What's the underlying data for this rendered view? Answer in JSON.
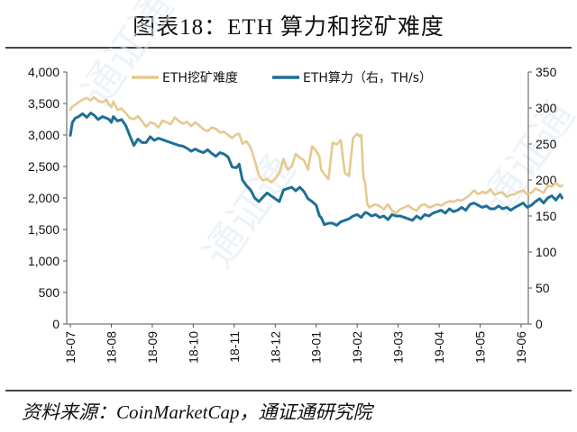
{
  "title": "图表18：ETH 算力和挖矿难度",
  "source": "资料来源：CoinMarketCap，通证通研究院",
  "chart_data": {
    "type": "line",
    "x_ticks": [
      "18-07",
      "18-08",
      "18-09",
      "18-10",
      "18-11",
      "18-12",
      "19-01",
      "19-02",
      "19-03",
      "19-04",
      "19-05",
      "19-06"
    ],
    "y_left": {
      "ticks": [
        "0",
        "500",
        "1,000",
        "1,500",
        "2,000",
        "2,500",
        "3,000",
        "3,500",
        "4,000"
      ],
      "lim": [
        0,
        4000
      ]
    },
    "y_right": {
      "ticks": [
        "0",
        "50",
        "100",
        "150",
        "200",
        "250",
        "300",
        "350"
      ],
      "lim": [
        0,
        350
      ]
    },
    "series": [
      {
        "name": "ETH挖矿难度",
        "axis": "left",
        "color": "#e6c98e",
        "x": [
          0,
          0.05,
          0.12,
          0.2,
          0.3,
          0.4,
          0.5,
          0.58,
          0.68,
          0.78,
          0.88,
          0.95,
          1.0,
          1.05,
          1.15,
          1.25,
          1.35,
          1.45,
          1.55,
          1.65,
          1.75,
          1.85,
          1.95,
          2.05,
          2.15,
          2.25,
          2.35,
          2.45,
          2.55,
          2.65,
          2.75,
          2.85,
          2.95,
          3.05,
          3.15,
          3.25,
          3.35,
          3.45,
          3.55,
          3.65,
          3.75,
          3.85,
          3.95,
          4.05,
          4.12,
          4.2,
          4.3,
          4.4,
          4.5,
          4.6,
          4.7,
          4.8,
          4.9,
          5.0,
          5.1,
          5.2,
          5.3,
          5.4,
          5.5,
          5.6,
          5.7,
          5.8,
          5.9,
          6.0,
          6.08,
          6.12,
          6.2,
          6.3,
          6.4,
          6.5,
          6.6,
          6.7,
          6.8,
          6.9,
          7.0,
          7.05,
          7.1,
          7.15,
          7.2,
          7.25,
          7.3,
          7.35,
          7.45,
          7.55,
          7.65,
          7.75,
          7.85,
          7.95,
          8.05,
          8.15,
          8.25,
          8.35,
          8.45,
          8.55,
          8.65,
          8.75,
          8.85,
          8.95,
          9.05,
          9.15,
          9.25,
          9.35,
          9.45,
          9.55,
          9.65,
          9.75,
          9.85,
          9.95,
          10.05,
          10.15,
          10.25,
          10.35,
          10.45,
          10.55,
          10.65,
          10.75,
          10.85,
          10.95,
          11.05,
          11.15,
          11.25,
          11.35,
          11.45,
          11.55,
          11.65,
          11.75,
          11.85,
          11.95,
          12.0
        ],
        "values": [
          3400,
          3450,
          3480,
          3520,
          3560,
          3590,
          3550,
          3600,
          3540,
          3520,
          3560,
          3480,
          3440,
          3530,
          3400,
          3420,
          3350,
          3270,
          3250,
          3300,
          3220,
          3130,
          3200,
          3180,
          3120,
          3230,
          3200,
          3170,
          3280,
          3220,
          3180,
          3210,
          3140,
          3200,
          3150,
          3090,
          3060,
          3120,
          3100,
          3040,
          3050,
          3000,
          2950,
          3010,
          3020,
          2860,
          2900,
          2800,
          2600,
          2360,
          2280,
          2300,
          2250,
          2310,
          2400,
          2620,
          2450,
          2500,
          2700,
          2640,
          2600,
          2450,
          2820,
          2750,
          2650,
          2450,
          2380,
          2300,
          2880,
          2850,
          2920,
          2400,
          2350,
          2950,
          3020,
          2980,
          3000,
          2350,
          2200,
          1900,
          1850,
          1870,
          1900,
          1870,
          1820,
          1900,
          1800,
          1760,
          1820,
          1850,
          1880,
          1830,
          1800,
          1880,
          1900,
          1850,
          1870,
          1900,
          1880,
          1920,
          1950,
          1940,
          1970,
          1960,
          2000,
          2050,
          2120,
          2060,
          2100,
          2080,
          2140,
          2050,
          2080,
          2090,
          2020,
          2050,
          2060,
          2100,
          2120,
          2060,
          2080,
          2150,
          2120,
          2080,
          2200,
          2180,
          2240,
          2180,
          2200
        ]
      },
      {
        "name": "ETH算力（右，TH/s）",
        "axis": "right",
        "color": "#1f6f95",
        "x": [
          0,
          0.05,
          0.12,
          0.2,
          0.3,
          0.4,
          0.5,
          0.58,
          0.68,
          0.78,
          0.88,
          0.95,
          1.0,
          1.05,
          1.15,
          1.25,
          1.35,
          1.45,
          1.55,
          1.65,
          1.75,
          1.85,
          1.95,
          2.05,
          2.15,
          2.25,
          2.35,
          2.45,
          2.55,
          2.65,
          2.75,
          2.85,
          2.95,
          3.05,
          3.15,
          3.25,
          3.35,
          3.45,
          3.55,
          3.65,
          3.75,
          3.85,
          3.95,
          4.05,
          4.12,
          4.2,
          4.3,
          4.4,
          4.5,
          4.6,
          4.7,
          4.8,
          4.9,
          5.0,
          5.1,
          5.2,
          5.3,
          5.4,
          5.5,
          5.6,
          5.7,
          5.8,
          5.9,
          6.0,
          6.08,
          6.12,
          6.2,
          6.3,
          6.4,
          6.5,
          6.6,
          6.7,
          6.8,
          6.9,
          7.0,
          7.05,
          7.1,
          7.15,
          7.2,
          7.25,
          7.3,
          7.35,
          7.45,
          7.55,
          7.65,
          7.75,
          7.85,
          7.95,
          8.05,
          8.15,
          8.25,
          8.35,
          8.45,
          8.55,
          8.65,
          8.75,
          8.85,
          8.95,
          9.05,
          9.15,
          9.25,
          9.35,
          9.45,
          9.55,
          9.65,
          9.75,
          9.85,
          9.95,
          10.05,
          10.15,
          10.25,
          10.35,
          10.45,
          10.55,
          10.65,
          10.75,
          10.85,
          10.95,
          11.05,
          11.15,
          11.25,
          11.35,
          11.45,
          11.55,
          11.65,
          11.75,
          11.85,
          11.95,
          12.0
        ],
        "values": [
          262,
          280,
          286,
          288,
          292,
          287,
          293,
          290,
          284,
          288,
          286,
          284,
          280,
          288,
          282,
          284,
          276,
          262,
          248,
          257,
          252,
          252,
          260,
          255,
          258,
          256,
          254,
          252,
          250,
          248,
          247,
          244,
          240,
          243,
          240,
          238,
          242,
          237,
          233,
          238,
          236,
          232,
          218,
          217,
          222,
          200,
          192,
          186,
          175,
          170,
          176,
          182,
          178,
          174,
          170,
          186,
          188,
          190,
          185,
          190,
          184,
          174,
          170,
          165,
          150,
          148,
          138,
          140,
          140,
          137,
          142,
          144,
          146,
          150,
          152,
          150,
          148,
          152,
          155,
          154,
          152,
          150,
          152,
          148,
          150,
          145,
          152,
          150,
          150,
          148,
          146,
          144,
          150,
          146,
          152,
          150,
          154,
          156,
          158,
          154,
          160,
          156,
          158,
          162,
          158,
          166,
          168,
          165,
          162,
          164,
          160,
          160,
          164,
          160,
          162,
          158,
          162,
          165,
          168,
          162,
          165,
          170,
          174,
          168,
          175,
          178,
          172,
          180,
          175
        ]
      }
    ],
    "legend_position": "top",
    "grid": false,
    "watermark": "通证通"
  }
}
